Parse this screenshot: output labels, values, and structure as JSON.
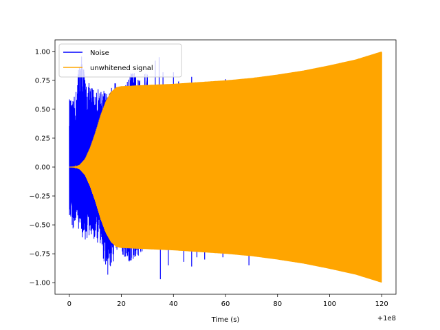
{
  "chart_data": {
    "type": "line",
    "title": "",
    "xlabel": "Time (s)",
    "ylabel": "",
    "x_offset_label": "+1e8",
    "xlim": [
      -5.5,
      125.5
    ],
    "ylim": [
      -1.1,
      1.1
    ],
    "xticks": [
      0,
      20,
      40,
      60,
      80,
      100,
      120
    ],
    "xtick_labels": [
      "0",
      "20",
      "40",
      "60",
      "80",
      "100",
      "120"
    ],
    "yticks": [
      -1.0,
      -0.75,
      -0.5,
      -0.25,
      0.0,
      0.25,
      0.5,
      0.75,
      1.0
    ],
    "ytick_labels": [
      "−1.00",
      "−0.75",
      "−0.50",
      "−0.25",
      "0.00",
      "0.25",
      "0.50",
      "0.75",
      "1.00"
    ],
    "grid": false,
    "legend_position": "top-left",
    "series": [
      {
        "name": "Noise",
        "color": "#0000ff",
        "style": "dense oscillating noise bursts",
        "x_range": [
          0,
          30
        ],
        "upper_peaks": [
          {
            "x": 0.3,
            "y": 0.6
          },
          {
            "x": 1.0,
            "y": 0.55
          },
          {
            "x": 2.5,
            "y": 0.65
          },
          {
            "x": 3.8,
            "y": 0.95
          },
          {
            "x": 5.0,
            "y": 1.0
          },
          {
            "x": 6.2,
            "y": 0.75
          },
          {
            "x": 8.0,
            "y": 0.72
          },
          {
            "x": 10.5,
            "y": 0.68
          },
          {
            "x": 12.5,
            "y": 0.7
          },
          {
            "x": 15.0,
            "y": 0.63
          },
          {
            "x": 17.5,
            "y": 0.75
          },
          {
            "x": 19.0,
            "y": 0.65
          },
          {
            "x": 21.0,
            "y": 0.68
          },
          {
            "x": 24.0,
            "y": 0.85
          },
          {
            "x": 27.0,
            "y": 0.75
          },
          {
            "x": 29.0,
            "y": 0.82
          }
        ],
        "lower_peaks": [
          {
            "x": 0.3,
            "y": -0.45
          },
          {
            "x": 1.5,
            "y": -0.55
          },
          {
            "x": 3.0,
            "y": -0.5
          },
          {
            "x": 4.5,
            "y": -0.6
          },
          {
            "x": 6.0,
            "y": -0.65
          },
          {
            "x": 8.0,
            "y": -0.6
          },
          {
            "x": 10.5,
            "y": -0.65
          },
          {
            "x": 12.5,
            "y": -0.75
          },
          {
            "x": 15.0,
            "y": -0.96
          },
          {
            "x": 17.5,
            "y": -0.8
          },
          {
            "x": 20.0,
            "y": -0.75
          },
          {
            "x": 23.0,
            "y": -0.85
          },
          {
            "x": 27.0,
            "y": -0.77
          },
          {
            "x": 29.0,
            "y": -0.75
          }
        ],
        "outliers": [
          {
            "x": 30,
            "y": 0.8
          },
          {
            "x": 33,
            "y": 0.92
          },
          {
            "x": 34.5,
            "y": 0.95
          },
          {
            "x": 36,
            "y": 0.82
          },
          {
            "x": 40,
            "y": 0.82
          },
          {
            "x": 42,
            "y": 0.74
          },
          {
            "x": 47,
            "y": 0.78
          },
          {
            "x": 60,
            "y": 0.76
          },
          {
            "x": 35,
            "y": -0.97
          },
          {
            "x": 38,
            "y": -0.85
          },
          {
            "x": 44,
            "y": -0.82
          },
          {
            "x": 47,
            "y": -0.86
          },
          {
            "x": 49,
            "y": -0.78
          },
          {
            "x": 52,
            "y": -0.8
          },
          {
            "x": 59,
            "y": -0.78
          },
          {
            "x": 69,
            "y": -0.85
          }
        ]
      },
      {
        "name": "unwhitened signal",
        "color": "#ffa500",
        "style": "dense oscillating chirp envelope",
        "envelope": [
          {
            "x": 0,
            "y": 0.0
          },
          {
            "x": 2,
            "y": 0.002
          },
          {
            "x": 4,
            "y": 0.02
          },
          {
            "x": 6,
            "y": 0.07
          },
          {
            "x": 8,
            "y": 0.17
          },
          {
            "x": 10,
            "y": 0.3
          },
          {
            "x": 12,
            "y": 0.45
          },
          {
            "x": 14,
            "y": 0.57
          },
          {
            "x": 16,
            "y": 0.65
          },
          {
            "x": 18,
            "y": 0.69
          },
          {
            "x": 20,
            "y": 0.7
          },
          {
            "x": 30,
            "y": 0.71
          },
          {
            "x": 40,
            "y": 0.72
          },
          {
            "x": 50,
            "y": 0.735
          },
          {
            "x": 60,
            "y": 0.75
          },
          {
            "x": 70,
            "y": 0.77
          },
          {
            "x": 80,
            "y": 0.8
          },
          {
            "x": 90,
            "y": 0.835
          },
          {
            "x": 100,
            "y": 0.88
          },
          {
            "x": 110,
            "y": 0.93
          },
          {
            "x": 120,
            "y": 1.0
          }
        ]
      }
    ]
  }
}
